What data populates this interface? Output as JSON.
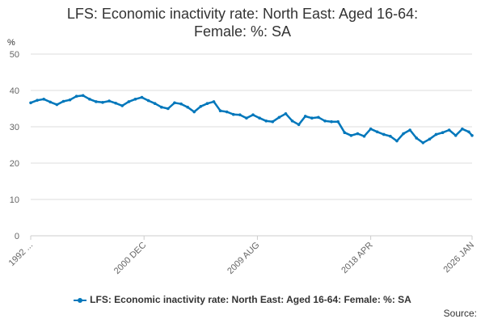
{
  "title_lines": [
    "LFS: Economic inactivity rate: North East: Aged 16-64:",
    "Female: %: SA"
  ],
  "source_label": "Source:",
  "colors": {
    "series": "#0077bb",
    "grid": "#dddddd",
    "axis_text": "#666666"
  },
  "chart_data": {
    "type": "line",
    "title": "LFS: Economic inactivity rate: North East: Aged 16-64: Female: %: SA",
    "ylabel": "%",
    "ylim": [
      0,
      50
    ],
    "yticks": [
      0,
      10,
      20,
      30,
      40,
      50
    ],
    "xlim": [
      "1992-04",
      "2026-01"
    ],
    "xticks": [
      {
        "date": "1992-04",
        "label": "1992 ..."
      },
      {
        "date": "2000-12",
        "label": "2000 DEC"
      },
      {
        "date": "2009-08",
        "label": "2009 AUG"
      },
      {
        "date": "2018-04",
        "label": "2018 APR"
      },
      {
        "date": "2026-01",
        "label": "2026 JAN"
      }
    ],
    "grid": true,
    "legend": "bottom",
    "series": [
      {
        "name": "LFS: Economic inactivity rate: North East: Aged 16-64: Female: %: SA",
        "points": [
          [
            "1992-04",
            36.6
          ],
          [
            "1992-10",
            37.3
          ],
          [
            "1993-04",
            37.6
          ],
          [
            "1993-10",
            36.8
          ],
          [
            "1994-04",
            36.1
          ],
          [
            "1994-10",
            37.0
          ],
          [
            "1995-04",
            37.4
          ],
          [
            "1995-10",
            38.4
          ],
          [
            "1996-04",
            38.6
          ],
          [
            "1996-10",
            37.6
          ],
          [
            "1997-04",
            36.9
          ],
          [
            "1997-10",
            36.7
          ],
          [
            "1998-04",
            37.1
          ],
          [
            "1998-10",
            36.5
          ],
          [
            "1999-04",
            35.8
          ],
          [
            "1999-10",
            36.9
          ],
          [
            "2000-04",
            37.6
          ],
          [
            "2000-10",
            38.1
          ],
          [
            "2001-04",
            37.2
          ],
          [
            "2001-10",
            36.4
          ],
          [
            "2002-04",
            35.4
          ],
          [
            "2002-10",
            35.0
          ],
          [
            "2003-04",
            36.6
          ],
          [
            "2003-10",
            36.3
          ],
          [
            "2004-04",
            35.4
          ],
          [
            "2004-10",
            34.1
          ],
          [
            "2005-04",
            35.6
          ],
          [
            "2005-10",
            36.4
          ],
          [
            "2006-04",
            36.9
          ],
          [
            "2006-10",
            34.4
          ],
          [
            "2007-04",
            34.1
          ],
          [
            "2007-10",
            33.4
          ],
          [
            "2008-04",
            33.3
          ],
          [
            "2008-10",
            32.4
          ],
          [
            "2009-04",
            33.3
          ],
          [
            "2009-10",
            32.4
          ],
          [
            "2010-04",
            31.6
          ],
          [
            "2010-10",
            31.4
          ],
          [
            "2011-04",
            32.6
          ],
          [
            "2011-10",
            33.6
          ],
          [
            "2012-04",
            31.6
          ],
          [
            "2012-10",
            30.6
          ],
          [
            "2013-04",
            32.9
          ],
          [
            "2013-10",
            32.4
          ],
          [
            "2014-04",
            32.6
          ],
          [
            "2014-10",
            31.6
          ],
          [
            "2015-04",
            31.4
          ],
          [
            "2015-10",
            31.4
          ],
          [
            "2016-04",
            28.4
          ],
          [
            "2016-10",
            27.6
          ],
          [
            "2017-04",
            28.1
          ],
          [
            "2017-10",
            27.4
          ],
          [
            "2018-04",
            29.4
          ],
          [
            "2018-10",
            28.6
          ],
          [
            "2019-04",
            27.9
          ],
          [
            "2019-10",
            27.4
          ],
          [
            "2020-04",
            26.1
          ],
          [
            "2020-10",
            28.1
          ],
          [
            "2021-04",
            29.1
          ],
          [
            "2021-10",
            26.9
          ],
          [
            "2022-04",
            25.6
          ],
          [
            "2022-10",
            26.6
          ],
          [
            "2023-04",
            27.9
          ],
          [
            "2023-10",
            28.4
          ],
          [
            "2024-04",
            29.1
          ],
          [
            "2024-10",
            27.6
          ],
          [
            "2025-04",
            29.4
          ],
          [
            "2025-10",
            28.6
          ],
          [
            "2026-01",
            27.6
          ]
        ]
      }
    ]
  }
}
